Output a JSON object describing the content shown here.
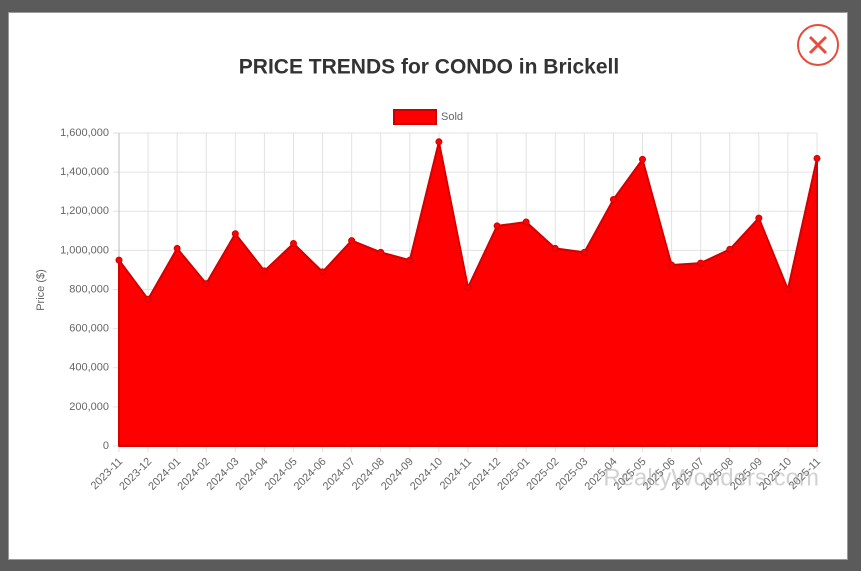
{
  "chart_data": {
    "type": "area",
    "title": "PRICE TRENDS for CONDO in Brickell",
    "y_label": "Price ($)",
    "categories": [
      "2023-11",
      "2023-12",
      "2024-01",
      "2024-02",
      "2024-03",
      "2024-04",
      "2024-05",
      "2024-06",
      "2024-07",
      "2024-08",
      "2024-09",
      "2024-10",
      "2024-11",
      "2024-12",
      "2025-01",
      "2025-02",
      "2025-03",
      "2025-04",
      "2025-05",
      "2025-06",
      "2025-07",
      "2025-08",
      "2025-09",
      "2025-10",
      "2025-11"
    ],
    "series": [
      {
        "name": "Sold",
        "color": "#ff0000",
        "values": [
          950000,
          750000,
          1010000,
          830000,
          1085000,
          895000,
          1035000,
          890000,
          1050000,
          990000,
          950000,
          1555000,
          810000,
          1125000,
          1145000,
          1010000,
          990000,
          1260000,
          1465000,
          925000,
          935000,
          1005000,
          1165000,
          800000,
          1470000
        ]
      }
    ],
    "ylim": [
      0,
      1600000
    ],
    "yticks": [
      {
        "value": 0,
        "label": "0"
      },
      {
        "value": 200000,
        "label": "200,000"
      },
      {
        "value": 400000,
        "label": "400,000"
      },
      {
        "value": 600000,
        "label": "600,000"
      },
      {
        "value": 800000,
        "label": "800,000"
      },
      {
        "value": 1000000,
        "label": "1,000,000"
      },
      {
        "value": 1200000,
        "label": "1,200,000"
      },
      {
        "value": 1400000,
        "label": "1,400,000"
      },
      {
        "value": 1600000,
        "label": "1,600,000"
      }
    ],
    "grid": true,
    "legend": "top"
  },
  "watermark": "RealtyWonders.com"
}
